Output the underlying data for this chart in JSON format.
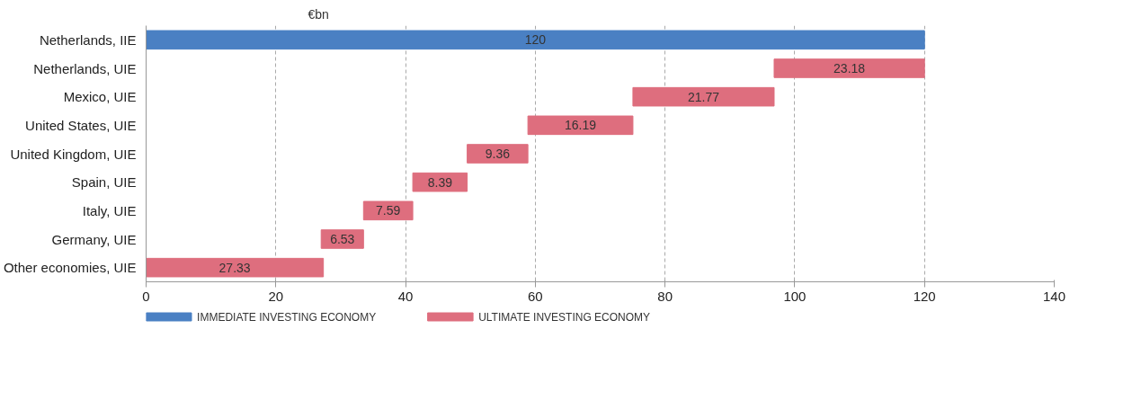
{
  "chart_data": {
    "type": "bar",
    "orientation": "horizontal",
    "categories": [
      "Netherlands, IIE",
      "Netherlands, UIE",
      "Mexico, UIE",
      "United States, UIE",
      "United Kingdom, UIE",
      "Spain, UIE",
      "Italy, UIE",
      "Germany, UIE",
      "Other economies, UIE"
    ],
    "series": [
      {
        "name": "IMMEDIATE INVESTING ECONOMY",
        "color": "#4a80c3",
        "values": [
          120,
          null,
          null,
          null,
          null,
          null,
          null,
          null,
          null
        ],
        "base": [
          0,
          null,
          null,
          null,
          null,
          null,
          null,
          null,
          null
        ]
      },
      {
        "name": "ULTIMATE INVESTING ECONOMY",
        "color": "#de6e7e",
        "values": [
          null,
          23.18,
          21.77,
          16.19,
          9.36,
          8.39,
          7.59,
          6.53,
          27.33
        ],
        "base": [
          null,
          96.82,
          75.05,
          58.86,
          49.5,
          41.11,
          33.52,
          26.99,
          0
        ]
      }
    ],
    "xlim": [
      0,
      140
    ],
    "xticks": [
      0,
      20,
      40,
      60,
      80,
      100,
      120,
      140
    ],
    "grid": "x",
    "legend": "bottom",
    "data_labels": true,
    "annotations": [
      "€bn"
    ]
  }
}
